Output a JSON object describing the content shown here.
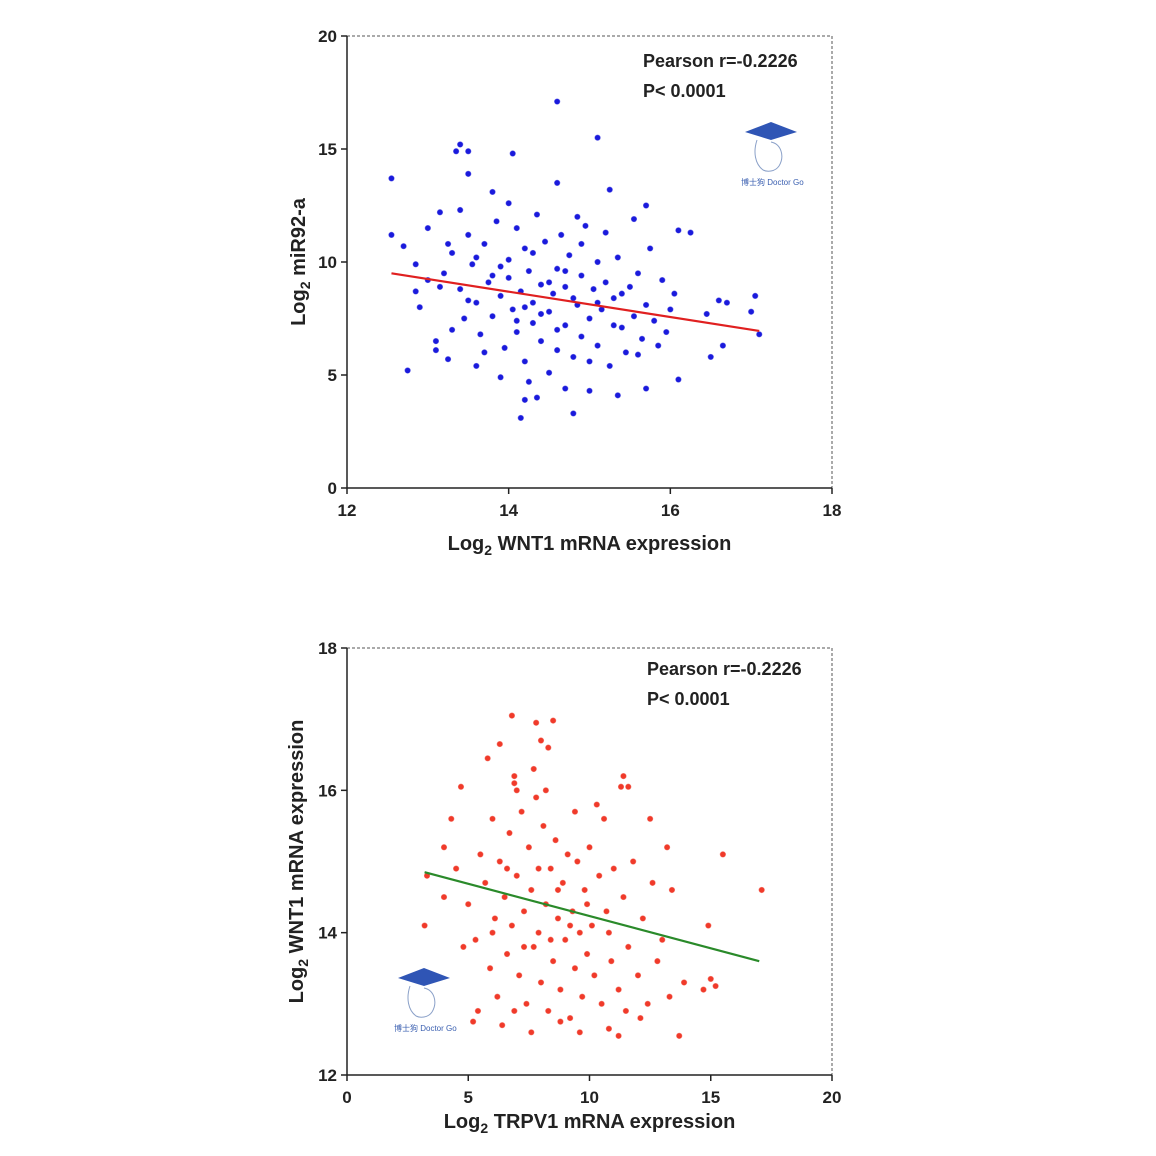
{
  "chart_data": [
    {
      "type": "scatter",
      "xlabel": {
        "prefix": "Log",
        "sub": "2",
        "rest": " WNT1 mRNA expression"
      },
      "ylabel": {
        "prefix": "Log",
        "sub": "2",
        "rest": " miR92-a"
      },
      "xlim": [
        12,
        18
      ],
      "ylim": [
        0,
        20
      ],
      "xticks": [
        "12",
        "14",
        "16",
        "18"
      ],
      "yticks": [
        "0",
        "5",
        "10",
        "15",
        "20"
      ],
      "grid": false,
      "point_color": "#1a1adc",
      "line_color": "#e02020",
      "fit_line": [
        [
          12.55,
          9.5
        ],
        [
          17.1,
          6.95
        ]
      ],
      "annotations": [
        "Pearson r=-0.2226",
        "P< 0.0001"
      ],
      "watermark": "博士狗 Doctor Go",
      "points": [
        [
          14.6,
          17.1
        ],
        [
          15.1,
          15.5
        ],
        [
          13.4,
          15.2
        ],
        [
          13.35,
          14.9
        ],
        [
          13.5,
          14.9
        ],
        [
          14.05,
          14.8
        ],
        [
          12.55,
          13.7
        ],
        [
          13.5,
          13.9
        ],
        [
          12.55,
          11.2
        ],
        [
          12.7,
          10.7
        ],
        [
          12.75,
          5.2
        ],
        [
          14.15,
          3.1
        ],
        [
          14.8,
          3.3
        ],
        [
          14.2,
          3.9
        ],
        [
          14.35,
          4.0
        ],
        [
          16.1,
          11.4
        ],
        [
          16.25,
          11.3
        ],
        [
          16.6,
          8.3
        ],
        [
          16.7,
          8.2
        ],
        [
          17.05,
          8.5
        ],
        [
          17.0,
          7.8
        ],
        [
          17.1,
          6.8
        ],
        [
          16.5,
          5.8
        ],
        [
          16.1,
          4.8
        ],
        [
          16.65,
          6.3
        ],
        [
          16.45,
          7.7
        ],
        [
          15.7,
          12.5
        ],
        [
          15.55,
          11.9
        ],
        [
          15.25,
          13.2
        ],
        [
          14.6,
          13.5
        ],
        [
          13.8,
          13.1
        ],
        [
          13.15,
          12.2
        ],
        [
          12.85,
          9.9
        ],
        [
          12.85,
          8.7
        ],
        [
          12.9,
          8.0
        ],
        [
          13.1,
          6.1
        ],
        [
          13.1,
          6.5
        ],
        [
          13.25,
          5.7
        ],
        [
          13.6,
          5.4
        ],
        [
          13.9,
          4.9
        ],
        [
          14.7,
          4.4
        ],
        [
          15.35,
          4.1
        ],
        [
          15.7,
          4.4
        ],
        [
          15.0,
          4.3
        ],
        [
          13.2,
          9.5
        ],
        [
          13.3,
          10.4
        ],
        [
          13.4,
          8.8
        ],
        [
          13.45,
          7.5
        ],
        [
          13.5,
          11.2
        ],
        [
          13.55,
          9.9
        ],
        [
          13.6,
          8.2
        ],
        [
          13.65,
          6.8
        ],
        [
          13.7,
          10.8
        ],
        [
          13.75,
          9.1
        ],
        [
          13.8,
          7.6
        ],
        [
          13.85,
          11.8
        ],
        [
          13.9,
          8.5
        ],
        [
          13.95,
          6.2
        ],
        [
          14.0,
          10.1
        ],
        [
          14.0,
          9.3
        ],
        [
          14.05,
          7.9
        ],
        [
          14.1,
          6.9
        ],
        [
          14.1,
          11.5
        ],
        [
          14.15,
          8.7
        ],
        [
          14.2,
          10.6
        ],
        [
          14.2,
          5.6
        ],
        [
          14.25,
          9.6
        ],
        [
          14.3,
          7.3
        ],
        [
          14.3,
          8.2
        ],
        [
          14.35,
          12.1
        ],
        [
          14.4,
          6.5
        ],
        [
          14.4,
          9.0
        ],
        [
          14.45,
          10.9
        ],
        [
          14.5,
          7.8
        ],
        [
          14.5,
          5.1
        ],
        [
          14.55,
          8.6
        ],
        [
          14.6,
          9.7
        ],
        [
          14.6,
          6.1
        ],
        [
          14.65,
          11.2
        ],
        [
          14.7,
          7.2
        ],
        [
          14.7,
          8.9
        ],
        [
          14.75,
          10.3
        ],
        [
          14.8,
          5.8
        ],
        [
          14.85,
          8.1
        ],
        [
          14.9,
          9.4
        ],
        [
          14.9,
          6.7
        ],
        [
          14.95,
          11.6
        ],
        [
          15.0,
          7.5
        ],
        [
          15.05,
          8.8
        ],
        [
          15.1,
          10.0
        ],
        [
          15.1,
          6.3
        ],
        [
          15.15,
          7.9
        ],
        [
          15.2,
          9.1
        ],
        [
          15.25,
          5.4
        ],
        [
          15.3,
          8.4
        ],
        [
          15.35,
          10.2
        ],
        [
          15.4,
          7.1
        ],
        [
          15.45,
          6.0
        ],
        [
          15.5,
          8.9
        ],
        [
          15.55,
          7.6
        ],
        [
          15.6,
          9.5
        ],
        [
          15.65,
          6.6
        ],
        [
          15.7,
          8.1
        ],
        [
          15.75,
          10.6
        ],
        [
          15.8,
          7.4
        ],
        [
          15.85,
          6.3
        ],
        [
          15.9,
          9.2
        ],
        [
          16.0,
          7.9
        ],
        [
          13.3,
          7.0
        ],
        [
          13.4,
          12.3
        ],
        [
          13.6,
          10.2
        ],
        [
          13.7,
          6.0
        ],
        [
          13.9,
          9.8
        ],
        [
          14.0,
          12.6
        ],
        [
          14.1,
          7.4
        ],
        [
          14.3,
          10.4
        ],
        [
          14.5,
          9.1
        ],
        [
          14.6,
          7.0
        ],
        [
          14.8,
          8.4
        ],
        [
          14.9,
          10.8
        ],
        [
          15.0,
          5.6
        ],
        [
          15.2,
          11.3
        ],
        [
          15.4,
          8.6
        ],
        [
          15.6,
          5.9
        ],
        [
          13.5,
          8.3
        ],
        [
          13.8,
          9.4
        ],
        [
          14.2,
          8.0
        ],
        [
          14.4,
          7.7
        ],
        [
          14.7,
          9.6
        ],
        [
          15.1,
          8.2
        ],
        [
          15.3,
          7.2
        ],
        [
          13.15,
          8.9
        ],
        [
          13.25,
          10.8
        ],
        [
          13.0,
          9.2
        ],
        [
          13.0,
          11.5
        ],
        [
          15.95,
          6.9
        ],
        [
          16.05,
          8.6
        ],
        [
          14.85,
          12.0
        ],
        [
          14.25,
          4.7
        ]
      ]
    },
    {
      "type": "scatter",
      "xlabel": {
        "prefix": "Log",
        "sub": "2",
        "rest": " TRPV1 mRNA expression"
      },
      "ylabel": {
        "prefix": "Log",
        "sub": "2",
        "rest": " WNT1 mRNA expression"
      },
      "xlim": [
        0,
        20
      ],
      "ylim": [
        12,
        18
      ],
      "xticks": [
        "0",
        "5",
        "10",
        "15",
        "20"
      ],
      "yticks": [
        "12",
        "14",
        "16",
        "18"
      ],
      "grid": false,
      "point_color": "#f03a2a",
      "line_color": "#2a8a2a",
      "fit_line": [
        [
          3.2,
          14.85
        ],
        [
          17.0,
          13.6
        ]
      ],
      "annotations": [
        "Pearson r=-0.2226",
        "P< 0.0001"
      ],
      "watermark": "博士狗 Doctor Go",
      "points": [
        [
          6.8,
          17.05
        ],
        [
          7.8,
          16.95
        ],
        [
          8.5,
          16.98
        ],
        [
          8.0,
          16.7
        ],
        [
          8.3,
          16.6
        ],
        [
          6.3,
          16.65
        ],
        [
          5.8,
          16.45
        ],
        [
          7.7,
          16.3
        ],
        [
          6.9,
          16.2
        ],
        [
          6.9,
          16.1
        ],
        [
          4.7,
          16.05
        ],
        [
          11.4,
          16.2
        ],
        [
          11.3,
          16.05
        ],
        [
          11.6,
          16.05
        ],
        [
          4.3,
          15.6
        ],
        [
          4.0,
          15.2
        ],
        [
          3.2,
          14.1
        ],
        [
          3.3,
          14.8
        ],
        [
          4.0,
          14.5
        ],
        [
          15.5,
          15.1
        ],
        [
          17.1,
          14.6
        ],
        [
          14.9,
          14.1
        ],
        [
          13.7,
          12.55
        ],
        [
          11.2,
          12.55
        ],
        [
          10.8,
          12.65
        ],
        [
          5.2,
          12.75
        ],
        [
          8.8,
          12.75
        ],
        [
          14.7,
          13.2
        ],
        [
          15.0,
          13.35
        ],
        [
          15.2,
          13.25
        ],
        [
          13.4,
          14.6
        ],
        [
          13.2,
          15.2
        ],
        [
          12.5,
          15.6
        ],
        [
          5.0,
          14.4
        ],
        [
          5.3,
          13.9
        ],
        [
          5.5,
          15.1
        ],
        [
          5.7,
          14.7
        ],
        [
          5.9,
          13.5
        ],
        [
          6.0,
          15.6
        ],
        [
          6.1,
          14.2
        ],
        [
          6.2,
          13.1
        ],
        [
          6.3,
          15.0
        ],
        [
          6.5,
          14.5
        ],
        [
          6.6,
          13.7
        ],
        [
          6.7,
          15.4
        ],
        [
          6.8,
          14.1
        ],
        [
          6.9,
          12.9
        ],
        [
          7.0,
          14.8
        ],
        [
          7.1,
          13.4
        ],
        [
          7.2,
          15.7
        ],
        [
          7.3,
          14.3
        ],
        [
          7.4,
          13.0
        ],
        [
          7.5,
          15.2
        ],
        [
          7.6,
          14.6
        ],
        [
          7.7,
          13.8
        ],
        [
          7.8,
          15.9
        ],
        [
          7.9,
          14.0
        ],
        [
          8.0,
          13.3
        ],
        [
          8.1,
          15.5
        ],
        [
          8.2,
          14.4
        ],
        [
          8.3,
          12.9
        ],
        [
          8.4,
          14.9
        ],
        [
          8.5,
          13.6
        ],
        [
          8.6,
          15.3
        ],
        [
          8.7,
          14.2
        ],
        [
          8.8,
          13.2
        ],
        [
          8.9,
          14.7
        ],
        [
          9.0,
          13.9
        ],
        [
          9.1,
          15.1
        ],
        [
          9.2,
          12.8
        ],
        [
          9.3,
          14.3
        ],
        [
          9.4,
          13.5
        ],
        [
          9.5,
          15.0
        ],
        [
          9.6,
          14.0
        ],
        [
          9.7,
          13.1
        ],
        [
          9.8,
          14.6
        ],
        [
          9.9,
          13.7
        ],
        [
          10.0,
          15.2
        ],
        [
          10.1,
          14.1
        ],
        [
          10.2,
          13.4
        ],
        [
          10.4,
          14.8
        ],
        [
          10.5,
          13.0
        ],
        [
          10.6,
          15.6
        ],
        [
          10.7,
          14.3
        ],
        [
          10.9,
          13.6
        ],
        [
          11.0,
          14.9
        ],
        [
          11.2,
          13.2
        ],
        [
          11.4,
          14.5
        ],
        [
          11.6,
          13.8
        ],
        [
          11.8,
          15.0
        ],
        [
          12.0,
          13.4
        ],
        [
          12.2,
          14.2
        ],
        [
          12.4,
          13.0
        ],
        [
          12.6,
          14.7
        ],
        [
          12.8,
          13.6
        ],
        [
          13.0,
          13.9
        ],
        [
          13.3,
          13.1
        ],
        [
          4.5,
          14.9
        ],
        [
          4.8,
          13.8
        ],
        [
          5.4,
          12.9
        ],
        [
          6.4,
          12.7
        ],
        [
          7.6,
          12.6
        ],
        [
          9.6,
          12.6
        ],
        [
          10.3,
          15.8
        ],
        [
          9.4,
          15.7
        ],
        [
          8.2,
          16.0
        ],
        [
          7.0,
          16.0
        ],
        [
          6.0,
          14.0
        ],
        [
          7.3,
          13.8
        ],
        [
          8.7,
          14.6
        ],
        [
          9.9,
          14.4
        ],
        [
          7.9,
          14.9
        ],
        [
          8.4,
          13.9
        ],
        [
          6.6,
          14.9
        ],
        [
          9.2,
          14.1
        ],
        [
          10.8,
          14.0
        ],
        [
          11.5,
          12.9
        ],
        [
          12.1,
          12.8
        ],
        [
          13.9,
          13.3
        ]
      ]
    }
  ]
}
